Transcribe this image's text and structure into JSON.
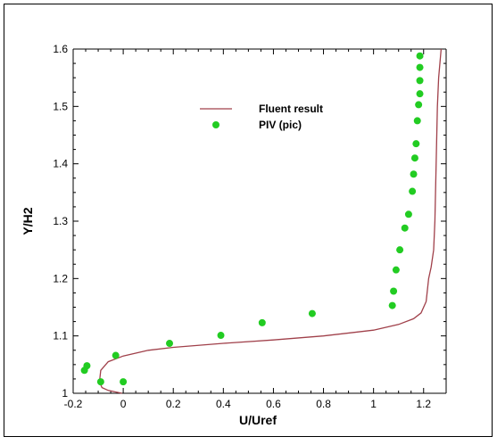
{
  "chart_data": {
    "type": "line",
    "title": "",
    "xlabel": "U/Uref",
    "ylabel": "Y/H2",
    "xlim": [
      -0.2,
      1.29
    ],
    "ylim": [
      1.0,
      1.6
    ],
    "xticks": [
      -0.2,
      0,
      0.2,
      0.4,
      0.6,
      0.8,
      1,
      1.2
    ],
    "xtick_labels": [
      "-0.2",
      "0",
      "0.2",
      "0.4",
      "0.6",
      "0.8",
      "1",
      "1.2"
    ],
    "yticks": [
      1.0,
      1.1,
      1.2,
      1.3,
      1.4,
      1.5,
      1.6
    ],
    "ytick_labels": [
      "1",
      "1.1",
      "1.2",
      "1.3",
      "1.4",
      "1.5",
      "1.6"
    ],
    "grid": false,
    "legend_position": "center",
    "series": [
      {
        "name": "Fluent result",
        "kind": "line",
        "color": "#a0404a",
        "x": [
          -0.005,
          -0.06,
          -0.085,
          -0.095,
          -0.09,
          -0.06,
          0.0,
          0.1,
          0.2,
          0.4,
          0.6,
          0.8,
          1.0,
          1.1,
          1.16,
          1.19,
          1.21,
          1.22,
          1.23,
          1.24,
          1.245,
          1.25,
          1.255,
          1.26,
          1.27
        ],
        "y": [
          1.0,
          1.005,
          1.01,
          1.02,
          1.04,
          1.055,
          1.065,
          1.075,
          1.08,
          1.087,
          1.093,
          1.1,
          1.11,
          1.12,
          1.13,
          1.14,
          1.16,
          1.2,
          1.22,
          1.25,
          1.3,
          1.4,
          1.5,
          1.55,
          1.6
        ]
      },
      {
        "name": "PIV (pic)",
        "kind": "scatter",
        "color": "#22cc22",
        "x": [
          0.0,
          -0.09,
          -0.145,
          -0.155,
          -0.03,
          0.185,
          0.39,
          0.555,
          0.755,
          1.075,
          1.08,
          1.09,
          1.105,
          1.125,
          1.14,
          1.155,
          1.16,
          1.165,
          1.17,
          1.175,
          1.18,
          1.185,
          1.185,
          1.185,
          1.185
        ],
        "y": [
          1.02,
          1.02,
          1.048,
          1.04,
          1.066,
          1.087,
          1.101,
          1.123,
          1.139,
          1.153,
          1.178,
          1.215,
          1.25,
          1.288,
          1.312,
          1.352,
          1.382,
          1.41,
          1.435,
          1.475,
          1.503,
          1.522,
          1.545,
          1.568,
          1.588
        ]
      }
    ]
  }
}
